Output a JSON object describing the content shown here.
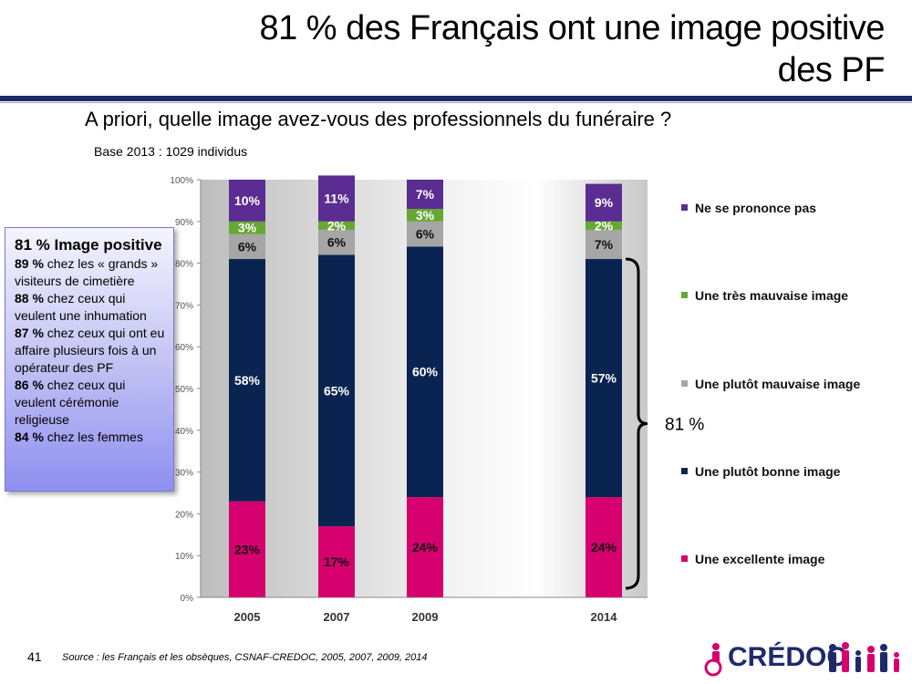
{
  "title": "81 % des Français ont une image positive des PF",
  "title_line1": "81 % des Français ont une image positive",
  "title_line2": "des PF",
  "question": "A priori, quelle image avez-vous des professionnels du funéraire ?",
  "base": "Base 2013 : 1029 individus",
  "sidebox": {
    "head": "81 % Image positive",
    "items": [
      {
        "pct": "89 %",
        "text": " chez les « grands » visiteurs de cimetière"
      },
      {
        "pct": "88 %",
        "text": " chez ceux qui veulent une inhumation"
      },
      {
        "pct": "87 %",
        "text": " chez ceux qui ont eu affaire plusieurs fois à un opérateur des PF"
      },
      {
        "pct": "86 %",
        "text": " chez ceux qui veulent cérémonie religieuse"
      },
      {
        "pct": "84 %",
        "text": " chez les femmes"
      }
    ]
  },
  "brace_label": "81 %",
  "page_number": "41",
  "source": "Source : les Français et les obsèques, CSNAF-CREDOC, 2005, 2007, 2009, 2014",
  "logo_text": "CRÉDOC",
  "colors": {
    "excellente": "#d6006e",
    "bonne": "#0a2452",
    "plutot_mauvaise": "#a6a6a6",
    "tres_mauvaise": "#66a832",
    "ne_se_prononce": "#5b2c91",
    "title_rule": "#1f2a6b"
  },
  "chart_data": {
    "type": "bar",
    "stacked": true,
    "categories": [
      "2005",
      "2007",
      "2009",
      "2014"
    ],
    "ylim": [
      0,
      100
    ],
    "yticks": [
      "0%",
      "10%",
      "20%",
      "30%",
      "40%",
      "50%",
      "60%",
      "70%",
      "80%",
      "90%",
      "100%"
    ],
    "grid": false,
    "legend_position": "right",
    "series": [
      {
        "name": "Une excellente image",
        "color": "#d6006e",
        "values": [
          23,
          17,
          24,
          24
        ],
        "labels": [
          "23%",
          "17%",
          "24%",
          "24%"
        ]
      },
      {
        "name": "Une plutôt bonne image",
        "color": "#0a2452",
        "values": [
          58,
          65,
          60,
          57
        ],
        "labels": [
          "58%",
          "65%",
          "60%",
          "57%"
        ]
      },
      {
        "name": "Une plutôt mauvaise image",
        "color": "#a6a6a6",
        "values": [
          6,
          6,
          6,
          7
        ],
        "labels": [
          "6%",
          "6%",
          "6%",
          "7%"
        ]
      },
      {
        "name": "Une très mauvaise image",
        "color": "#66a832",
        "values": [
          3,
          2,
          3,
          2
        ],
        "labels": [
          "3%",
          "2%",
          "3%",
          "2%"
        ]
      },
      {
        "name": "Ne se prononce pas",
        "color": "#5b2c91",
        "values": [
          10,
          11,
          7,
          9
        ],
        "labels": [
          "10%",
          "11%",
          "7%",
          "9%"
        ]
      }
    ],
    "legend_order": [
      "Ne se prononce pas",
      "Une très mauvaise image",
      "Une plutôt mauvaise image",
      "Une plutôt bonne image",
      "Une excellente image"
    ]
  }
}
